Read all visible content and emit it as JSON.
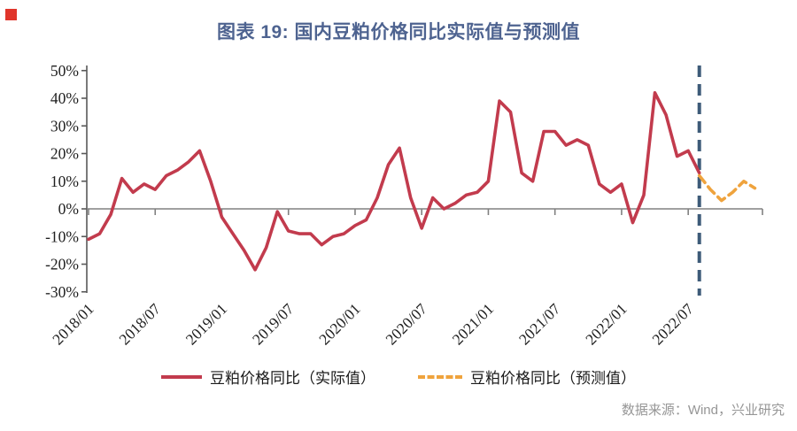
{
  "page": {
    "bullet_color": "#e0352b",
    "title": "图表 19: 国内豆粕价格同比实际值与预测值",
    "title_color": "#4e6390",
    "source_note": "数据来源：Wind，兴业研究"
  },
  "chart_data": {
    "type": "line",
    "title": "图表 19: 国内豆粕价格同比实际值与预测值",
    "xlabel": "",
    "ylabel": "",
    "unit": "%",
    "ylim": [
      -30,
      50
    ],
    "y_tick_labels": [
      "50%",
      "40%",
      "30%",
      "20%",
      "10%",
      "0%",
      "-10%",
      "-20%",
      "-30%"
    ],
    "y_tick_values": [
      50,
      40,
      30,
      20,
      10,
      0,
      -10,
      -20,
      -30
    ],
    "x_tick_labels": [
      "2018/01",
      "2018/07",
      "2019/01",
      "2019/07",
      "2020/01",
      "2020/07",
      "2021/01",
      "2021/07",
      "2022/01",
      "2022/07"
    ],
    "grid": false,
    "legend_position": "bottom",
    "axis_color": "#595959",
    "zero_line_color": "#808080",
    "series": [
      {
        "name": "豆粕价格同比（实际值）",
        "style": "solid",
        "color": "#c23b4d",
        "start": "2018/01",
        "values": [
          -11,
          -9,
          -2,
          11,
          6,
          9,
          7,
          12,
          14,
          17,
          21,
          10,
          -3,
          -9,
          -15,
          -22,
          -14,
          -1,
          -8,
          -9,
          -9,
          -13,
          -10,
          -9,
          -6,
          -4,
          4,
          16,
          22,
          4,
          -7,
          4,
          0,
          2,
          5,
          6,
          10,
          39,
          35,
          13,
          10,
          28,
          28,
          23,
          25,
          23,
          9,
          6,
          9,
          -5,
          5,
          42,
          34,
          19,
          21,
          13
        ]
      },
      {
        "name": "豆粕价格同比（预测值）",
        "style": "dashed",
        "color": "#efa33d",
        "start": "2022/08",
        "values": [
          12,
          7,
          3,
          6,
          10,
          7.5
        ]
      }
    ],
    "divider": {
      "at": "2022/08",
      "color": "#3e5b79",
      "style": "dashed"
    }
  }
}
